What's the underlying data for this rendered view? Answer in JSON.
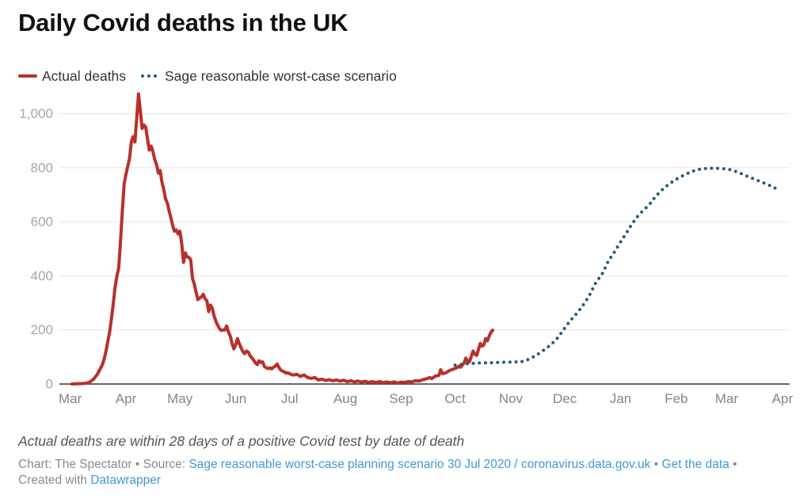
{
  "chart_data": {
    "type": "line",
    "title": "Daily Covid deaths in the UK",
    "xlabel": "",
    "ylabel": "",
    "legend_position": "top-left",
    "grid": true,
    "x_range": [
      "2020-02-24",
      "2021-04-05"
    ],
    "y_range": [
      0,
      1000
    ],
    "y_ticks": [
      {
        "value": 0,
        "label": "0"
      },
      {
        "value": 200,
        "label": "200"
      },
      {
        "value": 400,
        "label": "400"
      },
      {
        "value": 600,
        "label": "600"
      },
      {
        "value": 800,
        "label": "800"
      },
      {
        "value": 1000,
        "label": "1,000"
      }
    ],
    "x_ticks": [
      {
        "date": "2020-03-01",
        "label": "Mar"
      },
      {
        "date": "2020-04-01",
        "label": "Apr"
      },
      {
        "date": "2020-05-01",
        "label": "May"
      },
      {
        "date": "2020-06-01",
        "label": "Jun"
      },
      {
        "date": "2020-07-01",
        "label": "Jul"
      },
      {
        "date": "2020-08-01",
        "label": "Aug"
      },
      {
        "date": "2020-09-01",
        "label": "Sep"
      },
      {
        "date": "2020-10-01",
        "label": "Oct"
      },
      {
        "date": "2020-11-01",
        "label": "Nov"
      },
      {
        "date": "2020-12-01",
        "label": "Dec"
      },
      {
        "date": "2021-01-01",
        "label": "Jan"
      },
      {
        "date": "2021-02-01",
        "label": "Feb"
      },
      {
        "date": "2021-03-01",
        "label": "Mar"
      },
      {
        "date": "2021-04-01",
        "label": "Apr"
      }
    ],
    "series": [
      {
        "name": "Actual deaths",
        "color": "#b8302a",
        "style": "solid",
        "points": [
          [
            "2020-03-02",
            0
          ],
          [
            "2020-03-05",
            1
          ],
          [
            "2020-03-08",
            2
          ],
          [
            "2020-03-10",
            3
          ],
          [
            "2020-03-12",
            8
          ],
          [
            "2020-03-14",
            18
          ],
          [
            "2020-03-16",
            35
          ],
          [
            "2020-03-18",
            60
          ],
          [
            "2020-03-19",
            73
          ],
          [
            "2020-03-20",
            95
          ],
          [
            "2020-03-21",
            125
          ],
          [
            "2020-03-22",
            160
          ],
          [
            "2020-03-23",
            195
          ],
          [
            "2020-03-24",
            245
          ],
          [
            "2020-03-25",
            300
          ],
          [
            "2020-03-26",
            360
          ],
          [
            "2020-03-27",
            400
          ],
          [
            "2020-03-28",
            430
          ],
          [
            "2020-03-29",
            530
          ],
          [
            "2020-03-30",
            640
          ],
          [
            "2020-03-31",
            740
          ],
          [
            "2020-04-01",
            775
          ],
          [
            "2020-04-02",
            805
          ],
          [
            "2020-04-03",
            835
          ],
          [
            "2020-04-04",
            895
          ],
          [
            "2020-04-05",
            915
          ],
          [
            "2020-04-06",
            895
          ],
          [
            "2020-04-07",
            985
          ],
          [
            "2020-04-08",
            1073
          ],
          [
            "2020-04-09",
            1010
          ],
          [
            "2020-04-10",
            945
          ],
          [
            "2020-04-11",
            958
          ],
          [
            "2020-04-12",
            950
          ],
          [
            "2020-04-13",
            905
          ],
          [
            "2020-04-14",
            865
          ],
          [
            "2020-04-15",
            880
          ],
          [
            "2020-04-16",
            860
          ],
          [
            "2020-04-17",
            830
          ],
          [
            "2020-04-18",
            812
          ],
          [
            "2020-04-19",
            780
          ],
          [
            "2020-04-20",
            790
          ],
          [
            "2020-04-21",
            748
          ],
          [
            "2020-04-22",
            720
          ],
          [
            "2020-04-23",
            685
          ],
          [
            "2020-04-24",
            670
          ],
          [
            "2020-04-25",
            640
          ],
          [
            "2020-04-26",
            615
          ],
          [
            "2020-04-27",
            585
          ],
          [
            "2020-04-28",
            565
          ],
          [
            "2020-04-29",
            570
          ],
          [
            "2020-04-30",
            555
          ],
          [
            "2020-05-01",
            565
          ],
          [
            "2020-05-02",
            520
          ],
          [
            "2020-05-03",
            450
          ],
          [
            "2020-05-04",
            485
          ],
          [
            "2020-05-05",
            470
          ],
          [
            "2020-05-06",
            468
          ],
          [
            "2020-05-07",
            460
          ],
          [
            "2020-05-08",
            390
          ],
          [
            "2020-05-09",
            370
          ],
          [
            "2020-05-10",
            340
          ],
          [
            "2020-05-11",
            312
          ],
          [
            "2020-05-12",
            318
          ],
          [
            "2020-05-13",
            322
          ],
          [
            "2020-05-14",
            332
          ],
          [
            "2020-05-15",
            315
          ],
          [
            "2020-05-16",
            308
          ],
          [
            "2020-05-17",
            268
          ],
          [
            "2020-05-18",
            292
          ],
          [
            "2020-05-19",
            280
          ],
          [
            "2020-05-20",
            252
          ],
          [
            "2020-05-21",
            232
          ],
          [
            "2020-05-22",
            218
          ],
          [
            "2020-05-23",
            205
          ],
          [
            "2020-05-24",
            198
          ],
          [
            "2020-05-25",
            200
          ],
          [
            "2020-05-26",
            200
          ],
          [
            "2020-05-27",
            215
          ],
          [
            "2020-05-28",
            192
          ],
          [
            "2020-05-29",
            178
          ],
          [
            "2020-05-30",
            150
          ],
          [
            "2020-05-31",
            130
          ],
          [
            "2020-06-01",
            145
          ],
          [
            "2020-06-02",
            168
          ],
          [
            "2020-06-03",
            150
          ],
          [
            "2020-06-04",
            135
          ],
          [
            "2020-06-05",
            120
          ],
          [
            "2020-06-06",
            112
          ],
          [
            "2020-06-07",
            122
          ],
          [
            "2020-06-08",
            118
          ],
          [
            "2020-06-09",
            105
          ],
          [
            "2020-06-10",
            97
          ],
          [
            "2020-06-11",
            88
          ],
          [
            "2020-06-12",
            78
          ],
          [
            "2020-06-13",
            72
          ],
          [
            "2020-06-14",
            86
          ],
          [
            "2020-06-15",
            80
          ],
          [
            "2020-06-16",
            82
          ],
          [
            "2020-06-17",
            65
          ],
          [
            "2020-06-18",
            60
          ],
          [
            "2020-06-19",
            57
          ],
          [
            "2020-06-20",
            60
          ],
          [
            "2020-06-21",
            56
          ],
          [
            "2020-06-22",
            62
          ],
          [
            "2020-06-23",
            66
          ],
          [
            "2020-06-24",
            74
          ],
          [
            "2020-06-25",
            62
          ],
          [
            "2020-06-26",
            52
          ],
          [
            "2020-06-27",
            48
          ],
          [
            "2020-06-28",
            45
          ],
          [
            "2020-06-29",
            40
          ],
          [
            "2020-06-30",
            42
          ],
          [
            "2020-07-01",
            38
          ],
          [
            "2020-07-03",
            33
          ],
          [
            "2020-07-05",
            36
          ],
          [
            "2020-07-07",
            28
          ],
          [
            "2020-07-09",
            34
          ],
          [
            "2020-07-11",
            24
          ],
          [
            "2020-07-13",
            21
          ],
          [
            "2020-07-15",
            24
          ],
          [
            "2020-07-17",
            15
          ],
          [
            "2020-07-19",
            18
          ],
          [
            "2020-07-21",
            13
          ],
          [
            "2020-07-23",
            16
          ],
          [
            "2020-07-25",
            12
          ],
          [
            "2020-07-27",
            15
          ],
          [
            "2020-07-29",
            11
          ],
          [
            "2020-07-31",
            14
          ],
          [
            "2020-08-02",
            9
          ],
          [
            "2020-08-04",
            12
          ],
          [
            "2020-08-06",
            8
          ],
          [
            "2020-08-08",
            11
          ],
          [
            "2020-08-10",
            7
          ],
          [
            "2020-08-12",
            10
          ],
          [
            "2020-08-14",
            6
          ],
          [
            "2020-08-16",
            9
          ],
          [
            "2020-08-18",
            6
          ],
          [
            "2020-08-20",
            9
          ],
          [
            "2020-08-22",
            5
          ],
          [
            "2020-08-24",
            8
          ],
          [
            "2020-08-26",
            5
          ],
          [
            "2020-08-28",
            8
          ],
          [
            "2020-08-30",
            4
          ],
          [
            "2020-09-01",
            7
          ],
          [
            "2020-09-03",
            6
          ],
          [
            "2020-09-05",
            9
          ],
          [
            "2020-09-07",
            8
          ],
          [
            "2020-09-09",
            12
          ],
          [
            "2020-09-11",
            11
          ],
          [
            "2020-09-13",
            16
          ],
          [
            "2020-09-15",
            19
          ],
          [
            "2020-09-17",
            24
          ],
          [
            "2020-09-18",
            20
          ],
          [
            "2020-09-20",
            29
          ],
          [
            "2020-09-22",
            32
          ],
          [
            "2020-09-23",
            53
          ],
          [
            "2020-09-24",
            38
          ],
          [
            "2020-09-26",
            42
          ],
          [
            "2020-09-28",
            50
          ],
          [
            "2020-09-30",
            55
          ],
          [
            "2020-10-01",
            58
          ],
          [
            "2020-10-02",
            60
          ],
          [
            "2020-10-03",
            66
          ],
          [
            "2020-10-04",
            62
          ],
          [
            "2020-10-05",
            70
          ],
          [
            "2020-10-06",
            78
          ],
          [
            "2020-10-07",
            96
          ],
          [
            "2020-10-08",
            84
          ],
          [
            "2020-10-09",
            82
          ],
          [
            "2020-10-10",
            102
          ],
          [
            "2020-10-11",
            122
          ],
          [
            "2020-10-12",
            110
          ],
          [
            "2020-10-13",
            106
          ],
          [
            "2020-10-14",
            128
          ],
          [
            "2020-10-15",
            150
          ],
          [
            "2020-10-16",
            140
          ],
          [
            "2020-10-17",
            145
          ],
          [
            "2020-10-18",
            168
          ],
          [
            "2020-10-19",
            160
          ],
          [
            "2020-10-20",
            178
          ],
          [
            "2020-10-21",
            192
          ],
          [
            "2020-10-22",
            199
          ]
        ]
      },
      {
        "name": "Sage reasonable worst-case scenario",
        "color": "#245b77",
        "style": "dotted",
        "points": [
          [
            "2020-10-01",
            70
          ],
          [
            "2020-10-08",
            75
          ],
          [
            "2020-10-15",
            78
          ],
          [
            "2020-10-22",
            79
          ],
          [
            "2020-10-30",
            81
          ],
          [
            "2020-11-05",
            82
          ],
          [
            "2020-11-09",
            86
          ],
          [
            "2020-11-15",
            106
          ],
          [
            "2020-11-21",
            134
          ],
          [
            "2020-11-26",
            163
          ],
          [
            "2020-11-30",
            198
          ],
          [
            "2020-12-04",
            234
          ],
          [
            "2020-12-07",
            256
          ],
          [
            "2020-12-11",
            290
          ],
          [
            "2020-12-15",
            332
          ],
          [
            "2020-12-18",
            372
          ],
          [
            "2020-12-22",
            410
          ],
          [
            "2020-12-25",
            452
          ],
          [
            "2020-12-28",
            482
          ],
          [
            "2021-01-01",
            525
          ],
          [
            "2021-01-04",
            556
          ],
          [
            "2021-01-07",
            588
          ],
          [
            "2021-01-11",
            624
          ],
          [
            "2021-01-17",
            664
          ],
          [
            "2021-01-21",
            697
          ],
          [
            "2021-01-26",
            729
          ],
          [
            "2021-02-01",
            757
          ],
          [
            "2021-02-08",
            781
          ],
          [
            "2021-02-14",
            794
          ],
          [
            "2021-02-21",
            798
          ],
          [
            "2021-03-01",
            795
          ],
          [
            "2021-03-07",
            784
          ],
          [
            "2021-03-13",
            767
          ],
          [
            "2021-03-20",
            748
          ],
          [
            "2021-03-26",
            731
          ],
          [
            "2021-03-30",
            717
          ]
        ]
      }
    ]
  },
  "footer": {
    "note": "Actual deaths are within 28 days of a positive Covid test by date of death",
    "chart_credit": "Chart: The Spectator",
    "separator": "•",
    "source_label": "Source:",
    "source_link": "Sage reasonable worst-case planning scenario 30 Jul 2020 / coronavirus.data.gov.uk",
    "get_data_link": "Get the data",
    "created_with_label": "Created with",
    "datawrapper_link": "Datawrapper"
  }
}
